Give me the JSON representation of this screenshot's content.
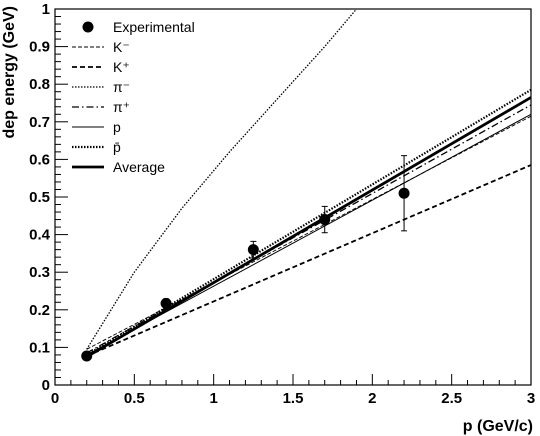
{
  "chart_data": {
    "type": "line",
    "xlabel": "p (GeV/c)",
    "ylabel": "dep energy (GeV)",
    "xlim": [
      0,
      3
    ],
    "ylim": [
      0,
      1
    ],
    "xticks": [
      0,
      0.5,
      1,
      1.5,
      2,
      2.5,
      3
    ],
    "xtick_labels": [
      "0",
      "0.5",
      "1",
      "1.5",
      "2",
      "2.5",
      "3"
    ],
    "yticks": [
      0,
      0.1,
      0.2,
      0.3,
      0.4,
      0.5,
      0.6,
      0.7,
      0.8,
      0.9,
      1
    ],
    "ytick_labels": [
      "0",
      "0.1",
      "0.2",
      "0.3",
      "0.4",
      "0.5",
      "0.6",
      "0.7",
      "0.8",
      "0.9",
      "1"
    ],
    "grid": false,
    "legend_position": "top-left",
    "experimental": {
      "name": "Experimental",
      "x": [
        0.2,
        0.7,
        1.25,
        1.7,
        2.2
      ],
      "y": [
        0.077,
        0.217,
        0.36,
        0.44,
        0.51
      ],
      "yerr": [
        0.008,
        0.012,
        0.022,
        0.035,
        0.1
      ]
    },
    "series": [
      {
        "name": "K⁻",
        "style": "thin-dashed",
        "x": [
          0.2,
          3.0
        ],
        "y": [
          0.095,
          0.715
        ]
      },
      {
        "name": "K⁺",
        "style": "dashed",
        "x": [
          0.2,
          3.0
        ],
        "y": [
          0.077,
          0.585
        ]
      },
      {
        "name": "π⁻",
        "style": "dotted-fine",
        "x": [
          0.2,
          0.5,
          0.8,
          1.1,
          1.4,
          1.7,
          1.9
        ],
        "y": [
          0.095,
          0.3,
          0.47,
          0.62,
          0.76,
          0.9,
          1.0
        ]
      },
      {
        "name": "π⁺",
        "style": "dash-dot",
        "x": [
          0.2,
          3.0
        ],
        "y": [
          0.085,
          0.745
        ]
      },
      {
        "name": "p",
        "style": "thin-solid",
        "x": [
          0.2,
          3.0
        ],
        "y": [
          0.08,
          0.72
        ]
      },
      {
        "name": "p̄",
        "style": "dotted-thick",
        "x": [
          0.2,
          3.0
        ],
        "y": [
          0.08,
          0.785
        ]
      },
      {
        "name": "Average",
        "style": "thick-solid",
        "x": [
          0.2,
          3.0
        ],
        "y": [
          0.075,
          0.765
        ]
      }
    ]
  }
}
